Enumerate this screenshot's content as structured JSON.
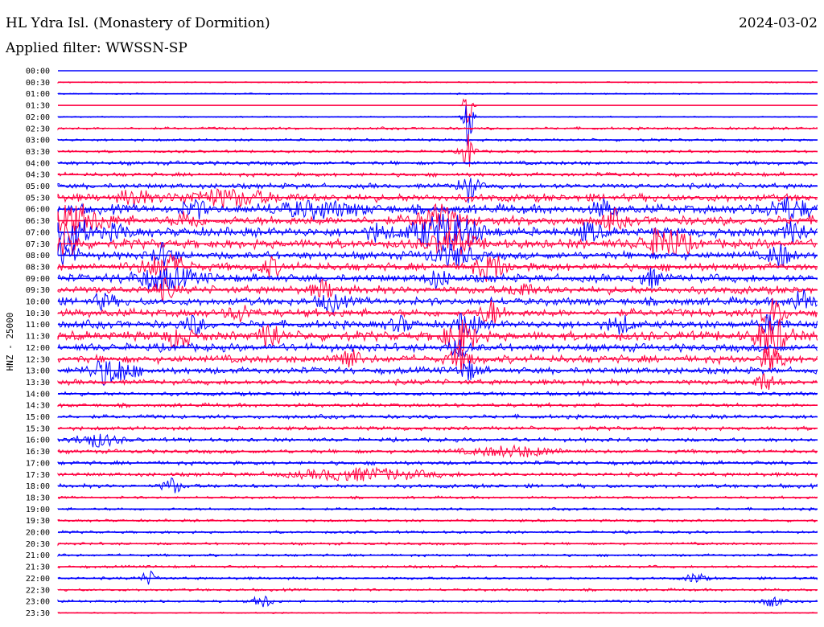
{
  "header": {
    "title": "HL Ydra Isl. (Monastery of Dormition)",
    "date": "2024-03-02",
    "filter": "Applied filter: WWSSN-SP"
  },
  "chart_data": {
    "type": "line",
    "title": "HL Ydra Isl. (Monastery of Dormition)",
    "ylabel": "HNZ - 25000",
    "row_labels": [
      "00:00",
      "00:30",
      "01:00",
      "01:30",
      "02:00",
      "02:30",
      "03:00",
      "03:30",
      "04:00",
      "04:30",
      "05:00",
      "05:30",
      "06:00",
      "06:30",
      "07:00",
      "07:30",
      "08:00",
      "08:30",
      "09:00",
      "09:30",
      "10:00",
      "10:30",
      "11:00",
      "11:30",
      "12:00",
      "12:30",
      "13:00",
      "13:30",
      "14:00",
      "14:30",
      "15:00",
      "15:30",
      "16:00",
      "16:30",
      "17:00",
      "17:30",
      "18:00",
      "18:30",
      "19:00",
      "19:30",
      "20:00",
      "20:30",
      "21:00",
      "21:30",
      "22:00",
      "22:30",
      "23:00",
      "23:30"
    ],
    "trace_colors": [
      "#0000ff",
      "#ff0040"
    ],
    "row_noise": [
      0,
      1,
      1,
      0,
      1,
      2,
      2,
      2,
      3,
      3,
      4,
      6,
      7,
      7,
      7,
      7,
      6,
      6,
      6,
      6,
      6,
      6,
      6,
      7,
      6,
      6,
      5,
      4,
      3,
      3,
      3,
      3,
      3,
      3,
      3,
      3,
      3,
      2,
      2,
      2,
      2,
      2,
      2,
      2,
      2,
      2,
      2,
      1
    ],
    "events": [
      {
        "row": 3,
        "x": 0.54,
        "amp": 32,
        "width": 0.004
      },
      {
        "row": 4,
        "x": 0.54,
        "amp": 40,
        "width": 0.004
      },
      {
        "row": 7,
        "x": 0.54,
        "amp": 22,
        "width": 0.006
      },
      {
        "row": 10,
        "x": 0.54,
        "amp": 18,
        "width": 0.008
      },
      {
        "row": 11,
        "x": 0.1,
        "amp": 12,
        "width": 0.01
      },
      {
        "row": 11,
        "x": 0.22,
        "amp": 9,
        "width": 0.04
      },
      {
        "row": 12,
        "x": 0.18,
        "amp": 10,
        "width": 0.01
      },
      {
        "row": 12,
        "x": 0.34,
        "amp": 8,
        "width": 0.04
      },
      {
        "row": 12,
        "x": 0.72,
        "amp": 10,
        "width": 0.01
      },
      {
        "row": 12,
        "x": 0.96,
        "amp": 12,
        "width": 0.02
      },
      {
        "row": 13,
        "x": 0.02,
        "amp": 16,
        "width": 0.03
      },
      {
        "row": 13,
        "x": 0.17,
        "amp": 10,
        "width": 0.01
      },
      {
        "row": 13,
        "x": 0.5,
        "amp": 16,
        "width": 0.02
      },
      {
        "row": 13,
        "x": 0.73,
        "amp": 10,
        "width": 0.01
      },
      {
        "row": 14,
        "x": 0.01,
        "amp": 22,
        "width": 0.02
      },
      {
        "row": 14,
        "x": 0.08,
        "amp": 8,
        "width": 0.01
      },
      {
        "row": 14,
        "x": 0.42,
        "amp": 8,
        "width": 0.01
      },
      {
        "row": 14,
        "x": 0.51,
        "amp": 22,
        "width": 0.03
      },
      {
        "row": 14,
        "x": 0.7,
        "amp": 10,
        "width": 0.01
      },
      {
        "row": 14,
        "x": 0.97,
        "amp": 12,
        "width": 0.01
      },
      {
        "row": 15,
        "x": 0.01,
        "amp": 20,
        "width": 0.01
      },
      {
        "row": 15,
        "x": 0.52,
        "amp": 14,
        "width": 0.02
      },
      {
        "row": 15,
        "x": 0.8,
        "amp": 18,
        "width": 0.02
      },
      {
        "row": 16,
        "x": 0.01,
        "amp": 16,
        "width": 0.01
      },
      {
        "row": 16,
        "x": 0.14,
        "amp": 12,
        "width": 0.01
      },
      {
        "row": 16,
        "x": 0.52,
        "amp": 12,
        "width": 0.02
      },
      {
        "row": 16,
        "x": 0.95,
        "amp": 14,
        "width": 0.01
      },
      {
        "row": 17,
        "x": 0.14,
        "amp": 14,
        "width": 0.02
      },
      {
        "row": 17,
        "x": 0.28,
        "amp": 10,
        "width": 0.01
      },
      {
        "row": 17,
        "x": 0.57,
        "amp": 14,
        "width": 0.015
      },
      {
        "row": 18,
        "x": 0.14,
        "amp": 12,
        "width": 0.03
      },
      {
        "row": 18,
        "x": 0.5,
        "amp": 10,
        "width": 0.01
      },
      {
        "row": 18,
        "x": 0.78,
        "amp": 10,
        "width": 0.01
      },
      {
        "row": 19,
        "x": 0.14,
        "amp": 10,
        "width": 0.01
      },
      {
        "row": 19,
        "x": 0.35,
        "amp": 10,
        "width": 0.01
      },
      {
        "row": 19,
        "x": 0.61,
        "amp": 8,
        "width": 0.01
      },
      {
        "row": 20,
        "x": 0.06,
        "amp": 8,
        "width": 0.01
      },
      {
        "row": 20,
        "x": 0.36,
        "amp": 12,
        "width": 0.01
      },
      {
        "row": 20,
        "x": 0.98,
        "amp": 14,
        "width": 0.01
      },
      {
        "row": 21,
        "x": 0.24,
        "amp": 10,
        "width": 0.01
      },
      {
        "row": 21,
        "x": 0.57,
        "amp": 14,
        "width": 0.01
      },
      {
        "row": 21,
        "x": 0.94,
        "amp": 18,
        "width": 0.01
      },
      {
        "row": 22,
        "x": 0.18,
        "amp": 10,
        "width": 0.01
      },
      {
        "row": 22,
        "x": 0.45,
        "amp": 8,
        "width": 0.01
      },
      {
        "row": 22,
        "x": 0.54,
        "amp": 14,
        "width": 0.01
      },
      {
        "row": 22,
        "x": 0.74,
        "amp": 10,
        "width": 0.01
      },
      {
        "row": 22,
        "x": 0.94,
        "amp": 10,
        "width": 0.01
      },
      {
        "row": 23,
        "x": 0.16,
        "amp": 14,
        "width": 0.01
      },
      {
        "row": 23,
        "x": 0.28,
        "amp": 18,
        "width": 0.008
      },
      {
        "row": 23,
        "x": 0.53,
        "amp": 18,
        "width": 0.015
      },
      {
        "row": 23,
        "x": 0.94,
        "amp": 22,
        "width": 0.015
      },
      {
        "row": 24,
        "x": 0.53,
        "amp": 10,
        "width": 0.01
      },
      {
        "row": 25,
        "x": 0.38,
        "amp": 14,
        "width": 0.01
      },
      {
        "row": 25,
        "x": 0.53,
        "amp": 14,
        "width": 0.01
      },
      {
        "row": 25,
        "x": 0.94,
        "amp": 14,
        "width": 0.01
      },
      {
        "row": 26,
        "x": 0.07,
        "amp": 16,
        "width": 0.02
      },
      {
        "row": 26,
        "x": 0.54,
        "amp": 10,
        "width": 0.01
      },
      {
        "row": 27,
        "x": 0.93,
        "amp": 10,
        "width": 0.01
      },
      {
        "row": 32,
        "x": 0.05,
        "amp": 8,
        "width": 0.02
      },
      {
        "row": 33,
        "x": 0.6,
        "amp": 6,
        "width": 0.04
      },
      {
        "row": 35,
        "x": 0.4,
        "amp": 7,
        "width": 0.06
      },
      {
        "row": 36,
        "x": 0.15,
        "amp": 10,
        "width": 0.008
      },
      {
        "row": 44,
        "x": 0.12,
        "amp": 8,
        "width": 0.008
      },
      {
        "row": 44,
        "x": 0.84,
        "amp": 7,
        "width": 0.008
      },
      {
        "row": 46,
        "x": 0.27,
        "amp": 8,
        "width": 0.008
      },
      {
        "row": 46,
        "x": 0.94,
        "amp": 7,
        "width": 0.008
      }
    ]
  }
}
